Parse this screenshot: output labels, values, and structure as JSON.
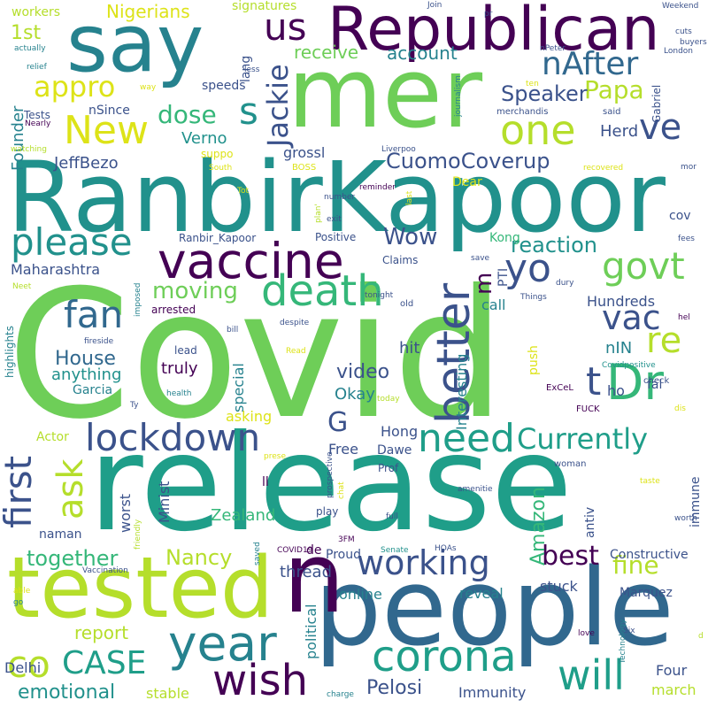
{
  "palette": {
    "dark_purple": "#440154",
    "indigo": "#3b528b",
    "blue": "#31688e",
    "teal_blue": "#26828e",
    "teal": "#21918c",
    "green_teal": "#1f9e89",
    "sea_green": "#35b779",
    "green": "#6ece58",
    "lime": "#b5de2b",
    "yellow": "#dde318"
  },
  "words": [
    {
      "text": "Covid",
      "color": "#6ece58",
      "rot": 0
    },
    {
      "text": "release",
      "color": "#1f9e89",
      "rot": 0
    },
    {
      "text": "RanbirKapoor",
      "color": "#21918c",
      "rot": 0
    },
    {
      "text": "people",
      "color": "#31688e",
      "rot": 0
    },
    {
      "text": "mer",
      "color": "#6ece58",
      "rot": 0
    },
    {
      "text": "say",
      "color": "#26828e",
      "rot": 0
    },
    {
      "text": "n",
      "color": "#440154",
      "rot": 0
    },
    {
      "text": "tested",
      "color": "#b5de2b",
      "rot": 0
    },
    {
      "text": "Republican",
      "color": "#440154",
      "rot": 0
    },
    {
      "text": "vaccine",
      "color": "#440154",
      "rot": 0
    },
    {
      "text": "death",
      "color": "#35b779",
      "rot": 0
    },
    {
      "text": "lockdown",
      "color": "#3b528b",
      "rot": 0
    },
    {
      "text": "Dr",
      "color": "#35b779",
      "rot": 0
    },
    {
      "text": "year",
      "color": "#26828e",
      "rot": 0
    },
    {
      "text": "working",
      "color": "#3b528b",
      "rot": 0
    },
    {
      "text": "corona",
      "color": "#1f9e89",
      "rot": 0
    },
    {
      "text": "please",
      "color": "#21918c",
      "rot": 0
    },
    {
      "text": "better",
      "color": "#3b528b",
      "rot": 270
    },
    {
      "text": "need",
      "color": "#1f9e89",
      "rot": 0
    },
    {
      "text": "Currently",
      "color": "#1f9e89",
      "rot": 0
    },
    {
      "text": "wish",
      "color": "#440154",
      "rot": 0
    },
    {
      "text": "will",
      "color": "#1f9e89",
      "rot": 0
    },
    {
      "text": "CASE",
      "color": "#1f9e89",
      "rot": 0
    },
    {
      "text": "fan",
      "color": "#31688e",
      "rot": 0
    },
    {
      "text": "first",
      "color": "#3b528b",
      "rot": 270
    },
    {
      "text": "one",
      "color": "#b5de2b",
      "rot": 0
    },
    {
      "text": "New",
      "color": "#dde318",
      "rot": 0
    },
    {
      "text": "nAfter",
      "color": "#31688e",
      "rot": 0
    },
    {
      "text": "us",
      "color": "#440154",
      "rot": 0
    },
    {
      "text": "govt",
      "color": "#6ece58",
      "rot": 0
    },
    {
      "text": "yo",
      "color": "#3b528b",
      "rot": 0
    },
    {
      "text": "vac",
      "color": "#3b528b",
      "rot": 0
    },
    {
      "text": "re",
      "color": "#b5de2b",
      "rot": 0
    },
    {
      "text": "ve",
      "color": "#3b528b",
      "rot": 0
    },
    {
      "text": "t",
      "color": "#3b528b",
      "rot": 0
    },
    {
      "text": "co",
      "color": "#b5de2b",
      "rot": 0
    },
    {
      "text": "ask",
      "color": "#b5de2b",
      "rot": 270
    },
    {
      "text": "best",
      "color": "#440154",
      "rot": 0
    },
    {
      "text": "fine",
      "color": "#b5de2b",
      "rot": 0
    },
    {
      "text": "moving",
      "color": "#6ece58",
      "rot": 0
    },
    {
      "text": "dose",
      "color": "#35b779",
      "rot": 0
    },
    {
      "text": "s",
      "color": "#21918c",
      "rot": 0
    },
    {
      "text": "Papa",
      "color": "#b5de2b",
      "rot": 0
    },
    {
      "text": "Jackie",
      "color": "#3b528b",
      "rot": 270
    },
    {
      "text": "appro",
      "color": "#dde318",
      "rot": 0
    },
    {
      "text": "Speaker",
      "color": "#3b528b",
      "rot": 0
    },
    {
      "text": "CuomoCoverup",
      "color": "#3b528b",
      "rot": 0
    },
    {
      "text": "reaction",
      "color": "#21918c",
      "rot": 0
    },
    {
      "text": "Wow",
      "color": "#3b528b",
      "rot": 0
    },
    {
      "text": "m",
      "color": "#440154",
      "rot": 270
    },
    {
      "text": "G",
      "color": "#3b528b",
      "rot": 0
    },
    {
      "text": "Pelosi",
      "color": "#3b528b",
      "rot": 0
    },
    {
      "text": "Nancy",
      "color": "#b5de2b",
      "rot": 0
    },
    {
      "text": "together",
      "color": "#35b779",
      "rot": 0
    },
    {
      "text": "emotional",
      "color": "#21918c",
      "rot": 0
    },
    {
      "text": "report",
      "color": "#b5de2b",
      "rot": 0
    },
    {
      "text": "House",
      "color": "#31688e",
      "rot": 0
    },
    {
      "text": "video",
      "color": "#3b528b",
      "rot": 0
    },
    {
      "text": "Amazon",
      "color": "#35b779",
      "rot": 270
    },
    {
      "text": "1st",
      "color": "#b5de2b",
      "rot": 0
    },
    {
      "text": "receive",
      "color": "#6ece58",
      "rot": 0
    },
    {
      "text": "account",
      "color": "#26828e",
      "rot": 0
    },
    {
      "text": "Nigerians",
      "color": "#dde318",
      "rot": 0
    },
    {
      "text": "Founder",
      "color": "#26828e",
      "rot": 270
    },
    {
      "text": "JeffBezo",
      "color": "#3b528b",
      "rot": 0
    },
    {
      "text": "Verno",
      "color": "#21918c",
      "rot": 0
    },
    {
      "text": "Herd",
      "color": "#3b528b",
      "rot": 0
    },
    {
      "text": "Maharashtra",
      "color": "#3b528b",
      "rot": 0
    },
    {
      "text": "Hundreds",
      "color": "#3b528b",
      "rot": 0
    },
    {
      "text": "nIN",
      "color": "#26828e",
      "rot": 0
    },
    {
      "text": "Zealand",
      "color": "#35b779",
      "rot": 0
    },
    {
      "text": "Immunity",
      "color": "#3b528b",
      "rot": 0
    },
    {
      "text": "Four",
      "color": "#3b528b",
      "rot": 0
    },
    {
      "text": "march",
      "color": "#b5de2b",
      "rot": 0
    },
    {
      "text": "Delhi",
      "color": "#3b528b",
      "rot": 0
    },
    {
      "text": "stable",
      "color": "#b5de2b",
      "rot": 0
    },
    {
      "text": "reveal",
      "color": "#26828e",
      "rot": 0
    },
    {
      "text": "stuck",
      "color": "#3b528b",
      "rot": 0
    },
    {
      "text": "online",
      "color": "#26828e",
      "rot": 0
    },
    {
      "text": "thread",
      "color": "#3b528b",
      "rot": 0
    },
    {
      "text": "political",
      "color": "#26828e",
      "rot": 270
    },
    {
      "text": "Okay",
      "color": "#26828e",
      "rot": 0
    },
    {
      "text": "hit",
      "color": "#3b528b",
      "rot": 0
    },
    {
      "text": "anything",
      "color": "#21918c",
      "rot": 0
    },
    {
      "text": "truly",
      "color": "#440154",
      "rot": 0
    },
    {
      "text": "asking",
      "color": "#dde318",
      "rot": 0
    },
    {
      "text": "special",
      "color": "#26828e",
      "rot": 270
    },
    {
      "text": "Interesting",
      "color": "#26828e",
      "rot": 270
    },
    {
      "text": "Hong",
      "color": "#3b528b",
      "rot": 0
    },
    {
      "text": "Kong",
      "color": "#35b779",
      "rot": 0
    },
    {
      "text": "Free",
      "color": "#3b528b",
      "rot": 0
    },
    {
      "text": "Dawe",
      "color": "#3b528b",
      "rot": 0
    },
    {
      "text": "Garcia",
      "color": "#26828e",
      "rot": 0
    },
    {
      "text": "worst",
      "color": "#3b528b",
      "rot": 270
    },
    {
      "text": "naman",
      "color": "#3b528b",
      "rot": 0
    },
    {
      "text": "Actor",
      "color": "#b5de2b",
      "rot": 0
    },
    {
      "text": "Minist",
      "color": "#3b528b",
      "rot": 270
    },
    {
      "text": "Marquez",
      "color": "#3b528b",
      "rot": 0
    },
    {
      "text": "Constructive",
      "color": "#3b528b",
      "rot": 0
    },
    {
      "text": "antiv",
      "color": "#3b528b",
      "rot": 270
    },
    {
      "text": "immune",
      "color": "#3b528b",
      "rot": 270
    },
    {
      "text": "push",
      "color": "#dde318",
      "rot": 270
    },
    {
      "text": "call",
      "color": "#26828e",
      "rot": 0
    },
    {
      "text": "PTI",
      "color": "#3b528b",
      "rot": 270
    },
    {
      "text": "ho",
      "color": "#3b528b",
      "rot": 0
    },
    {
      "text": "fal",
      "color": "#3b528b",
      "rot": 0
    },
    {
      "text": "cov",
      "color": "#3b528b",
      "rot": 0
    },
    {
      "text": "grossl",
      "color": "#3b528b",
      "rot": 0
    },
    {
      "text": "Dear",
      "color": "#dde318",
      "rot": 0
    },
    {
      "text": "speeds",
      "color": "#3b528b",
      "rot": 0
    },
    {
      "text": "lang",
      "color": "#3b528b",
      "rot": 270
    },
    {
      "text": "signatures",
      "color": "#b5de2b",
      "rot": 0
    },
    {
      "text": "workers",
      "color": "#b5de2b",
      "rot": 0
    },
    {
      "text": "nSince",
      "color": "#3b528b",
      "rot": 0
    },
    {
      "text": "Tests",
      "color": "#3b528b",
      "rot": 0
    },
    {
      "text": "Positive",
      "color": "#3b528b",
      "rot": 0
    },
    {
      "text": "Ranbir_Kapoor",
      "color": "#3b528b",
      "rot": 0
    },
    {
      "text": "Claims",
      "color": "#3b528b",
      "rot": 0
    },
    {
      "text": "highlights",
      "color": "#26828e",
      "rot": 270
    },
    {
      "text": "arrested",
      "color": "#440154",
      "rot": 0
    },
    {
      "text": "lead",
      "color": "#3b528b",
      "rot": 0
    },
    {
      "text": "ll",
      "color": "#440154",
      "rot": 0
    },
    {
      "text": "de",
      "color": "#440154",
      "rot": 0
    },
    {
      "text": "Proud",
      "color": "#3b528b",
      "rot": 0
    },
    {
      "text": "play",
      "color": "#3b528b",
      "rot": 0
    },
    {
      "text": "Prof",
      "color": "#3b528b",
      "rot": 0
    },
    {
      "text": "Gabriel",
      "color": "#3b528b",
      "rot": 270
    },
    {
      "text": "said",
      "color": "#3b528b",
      "rot": 0
    },
    {
      "text": "merchandis",
      "color": "#3b528b",
      "rot": 0
    },
    {
      "text": "BOSS",
      "color": "#dde318",
      "rot": 0
    },
    {
      "text": "suppo",
      "color": "#dde318",
      "rot": 0
    },
    {
      "text": "old",
      "color": "#3b528b",
      "rot": 0
    },
    {
      "text": "woman",
      "color": "#3b528b",
      "rot": 0
    },
    {
      "text": "FUCK",
      "color": "#440154",
      "rot": 0
    },
    {
      "text": "ExCeL",
      "color": "#440154",
      "rot": 0
    },
    {
      "text": "check",
      "color": "#3b528b",
      "rot": 0
    },
    {
      "text": "Covidpositive",
      "color": "#21918c",
      "rot": 0
    },
    {
      "text": "COVID19",
      "color": "#440154",
      "rot": 0
    },
    {
      "text": "HOAs",
      "color": "#3b528b",
      "rot": 0
    },
    {
      "text": "Senate",
      "color": "#21918c",
      "rot": 0
    },
    {
      "text": "3FM",
      "color": "#440154",
      "rot": 0
    },
    {
      "text": "Vaccination",
      "color": "#3b528b",
      "rot": 0
    },
    {
      "text": "Technology",
      "color": "#26828e",
      "rot": 270
    },
    {
      "text": "Six",
      "color": "#3b528b",
      "rot": 0
    },
    {
      "text": "love",
      "color": "#440154",
      "rot": 0
    },
    {
      "text": "worth",
      "color": "#3b528b",
      "rot": 0
    },
    {
      "text": "taste",
      "color": "#dde318",
      "rot": 0
    },
    {
      "text": "dis",
      "color": "#dde318",
      "rot": 0
    },
    {
      "text": "fees",
      "color": "#3b528b",
      "rot": 0
    },
    {
      "text": "hel",
      "color": "#440154",
      "rot": 0
    },
    {
      "text": "dury",
      "color": "#3b528b",
      "rot": 0
    },
    {
      "text": "save",
      "color": "#3b528b",
      "rot": 0
    },
    {
      "text": "Things",
      "color": "#3b528b",
      "rot": 0
    },
    {
      "text": "tonight",
      "color": "#3b528b",
      "rot": 0
    },
    {
      "text": "exit",
      "color": "#3b528b",
      "rot": 0
    },
    {
      "text": "number",
      "color": "#3b528b",
      "rot": 0
    },
    {
      "text": "reminder",
      "color": "#440154",
      "rot": 0
    },
    {
      "text": "Liverpoo",
      "color": "#3b528b",
      "rot": 0
    },
    {
      "text": "recovered",
      "color": "#dde318",
      "rot": 0
    },
    {
      "text": "mor",
      "color": "#3b528b",
      "rot": 0
    },
    {
      "text": "London",
      "color": "#3b528b",
      "rot": 0
    },
    {
      "text": "buyers",
      "color": "#3b528b",
      "rot": 0
    },
    {
      "text": "cuts",
      "color": "#3b528b",
      "rot": 0
    },
    {
      "text": "Weekend",
      "color": "#3b528b",
      "rot": 0
    },
    {
      "text": "Join",
      "color": "#3b528b",
      "rot": 0
    },
    {
      "text": "nPeter",
      "color": "#3b528b",
      "rot": 0
    },
    {
      "text": "ten",
      "color": "#dde318",
      "rot": 0
    },
    {
      "text": "journalism",
      "color": "#26828e",
      "rot": 270
    },
    {
      "text": "pr",
      "color": "#3b528b",
      "rot": 0
    },
    {
      "text": "less",
      "color": "#3b528b",
      "rot": 0
    },
    {
      "text": "way",
      "color": "#dde318",
      "rot": 0
    },
    {
      "text": "relief",
      "color": "#26828e",
      "rot": 0
    },
    {
      "text": "actually",
      "color": "#26828e",
      "rot": 0
    },
    {
      "text": "Nearly",
      "color": "#440154",
      "rot": 0
    },
    {
      "text": "watching",
      "color": "#b5de2b",
      "rot": 0
    },
    {
      "text": "South",
      "color": "#dde318",
      "rot": 0
    },
    {
      "text": "Tot",
      "color": "#dde318",
      "rot": 0
    },
    {
      "text": "plan'",
      "color": "#b5de2b",
      "rot": 270
    },
    {
      "text": "last",
      "color": "#dde318",
      "rot": 270
    },
    {
      "text": "Neet",
      "color": "#b5de2b",
      "rot": 0
    },
    {
      "text": "imposed",
      "color": "#26828e",
      "rot": 270
    },
    {
      "text": "fireside",
      "color": "#3b528b",
      "rot": 0
    },
    {
      "text": "bill",
      "color": "#3b528b",
      "rot": 0
    },
    {
      "text": "despite",
      "color": "#3b528b",
      "rot": 0
    },
    {
      "text": "Read",
      "color": "#dde318",
      "rot": 0
    },
    {
      "text": "health",
      "color": "#26828e",
      "rot": 0
    },
    {
      "text": "Ty",
      "color": "#3b528b",
      "rot": 0
    },
    {
      "text": "today",
      "color": "#b5de2b",
      "rot": 0
    },
    {
      "text": "friendly",
      "color": "#b5de2b",
      "rot": 270
    },
    {
      "text": "prospective",
      "color": "#3b528b",
      "rot": 270
    },
    {
      "text": "chat",
      "color": "#dde318",
      "rot": 270
    },
    {
      "text": "amenitie",
      "color": "#3b528b",
      "rot": 0
    },
    {
      "text": "full",
      "color": "#3b528b",
      "rot": 0
    },
    {
      "text": "saved",
      "color": "#26828e",
      "rot": 270
    },
    {
      "text": "able",
      "color": "#dde318",
      "rot": 0
    },
    {
      "text": "go",
      "color": "#26828e",
      "rot": 0
    },
    {
      "text": "charge",
      "color": "#26828e",
      "rot": 0
    },
    {
      "text": "d",
      "color": "#b5de2b",
      "rot": 0
    },
    {
      "text": "prese",
      "color": "#dde318",
      "rot": 0
    }
  ]
}
